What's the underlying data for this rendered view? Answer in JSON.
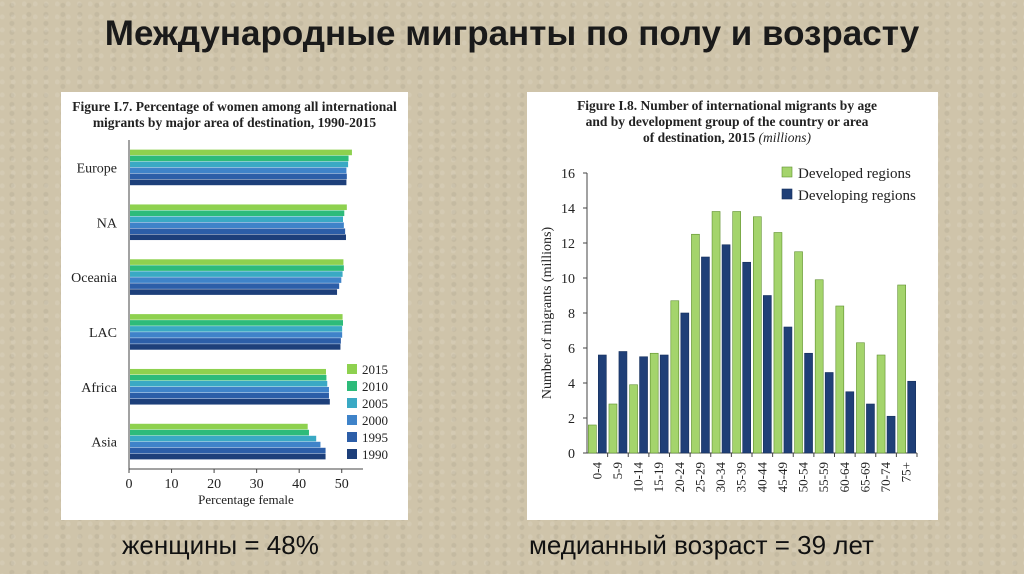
{
  "slide": {
    "title": "Международные мигранты по полу и возрасту",
    "caption_left": "женщины = 48%",
    "caption_right": "медианный возраст = 39 лет"
  },
  "chart_data": [
    {
      "type": "bar",
      "orientation": "horizontal",
      "title_line1": "Figure I.7. Percentage of women among all international",
      "title_line2": "migrants by major area of destination, 1990-2015",
      "xlabel": "Percentage female",
      "xlim": [
        0,
        55
      ],
      "xticks": [
        0,
        10,
        20,
        30,
        40,
        50
      ],
      "categories": [
        "Europe",
        "NA",
        "Oceania",
        "LAC",
        "Africa",
        "Asia"
      ],
      "series": [
        {
          "name": "2015",
          "color": "#8ed14f",
          "values": [
            52.4,
            51.2,
            50.4,
            50.2,
            46.3,
            42.0
          ]
        },
        {
          "name": "2010",
          "color": "#2dbb7a",
          "values": [
            51.6,
            50.6,
            50.5,
            50.3,
            46.4,
            42.3
          ]
        },
        {
          "name": "2005",
          "color": "#3aa9c4",
          "values": [
            51.5,
            50.3,
            50.2,
            50.1,
            46.6,
            44.0
          ]
        },
        {
          "name": "2000",
          "color": "#3f83c9",
          "values": [
            51.1,
            50.5,
            49.9,
            50.1,
            47.0,
            45.0
          ]
        },
        {
          "name": "1995",
          "color": "#2c5ea8",
          "values": [
            51.2,
            50.8,
            49.4,
            49.8,
            47.0,
            46.2
          ]
        },
        {
          "name": "1990",
          "color": "#1d3f7a",
          "values": [
            51.1,
            51.0,
            48.9,
            49.7,
            47.2,
            46.2
          ]
        }
      ]
    },
    {
      "type": "bar",
      "orientation": "vertical",
      "title_line1": "Figure I.8. Number of international migrants by age",
      "title_line2": "and by development group of the country or area",
      "title_line3": "of destination, 2015",
      "title_unit": "(millions)",
      "ylabel": "Number of migrants (millions)",
      "ylim": [
        0,
        16
      ],
      "yticks": [
        0,
        2,
        4,
        6,
        8,
        10,
        12,
        14,
        16
      ],
      "categories": [
        "0-4",
        "5-9",
        "10-14",
        "15-19",
        "20-24",
        "25-29",
        "30-34",
        "35-39",
        "40-44",
        "45-49",
        "50-54",
        "55-59",
        "60-64",
        "65-69",
        "70-74",
        "75+"
      ],
      "series": [
        {
          "name": "Developed regions",
          "color": "#a4d46c",
          "values": [
            1.6,
            2.8,
            3.9,
            5.7,
            8.7,
            12.5,
            13.8,
            13.8,
            13.5,
            12.6,
            11.5,
            9.9,
            8.4,
            6.3,
            5.6,
            9.6
          ]
        },
        {
          "name": "Developing regions",
          "color": "#1f3f77",
          "values": [
            5.6,
            5.8,
            5.5,
            5.6,
            8.0,
            11.2,
            11.9,
            10.9,
            9.0,
            7.2,
            5.7,
            4.6,
            3.5,
            2.8,
            2.1,
            4.1
          ]
        }
      ]
    }
  ]
}
